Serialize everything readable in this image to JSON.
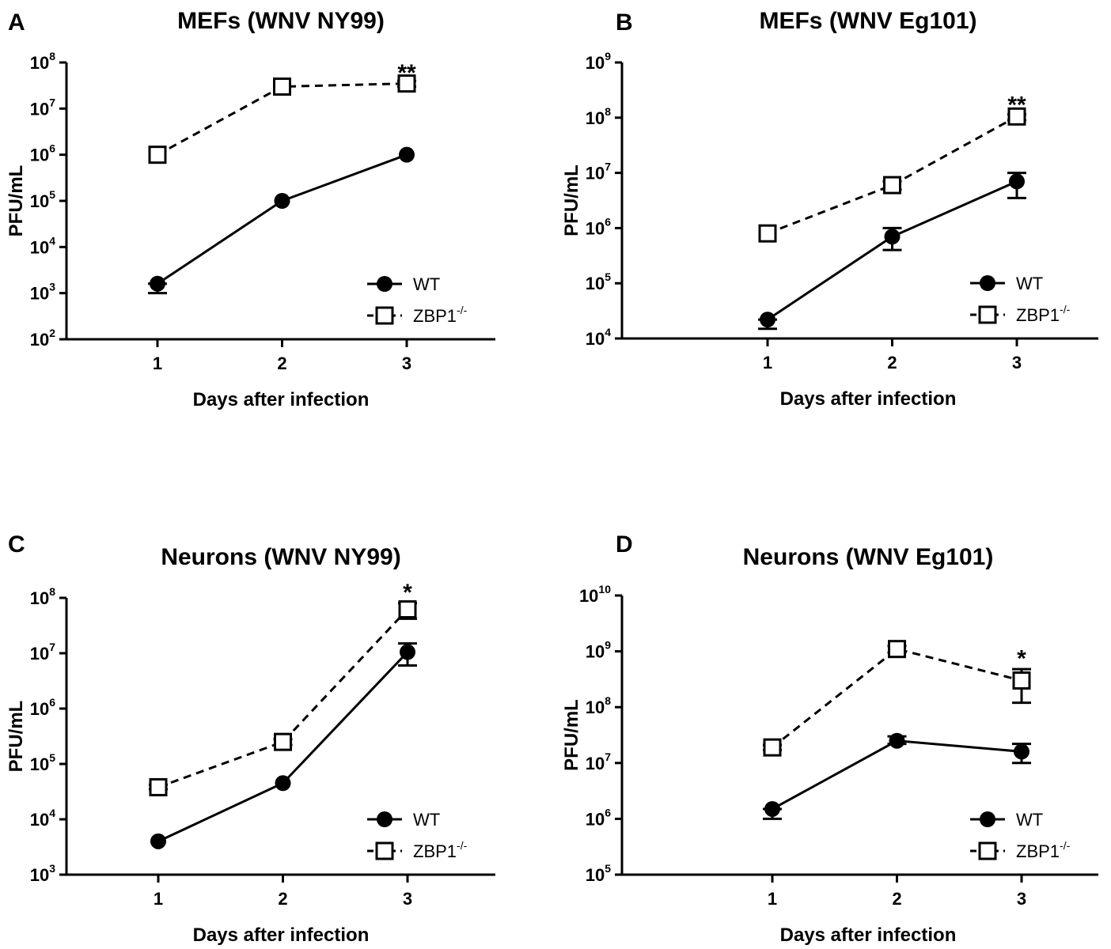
{
  "chart_data": [
    {
      "panel": "A",
      "type": "line",
      "title": "MEFs (WNV NY99)",
      "xlabel": "Days after infection",
      "ylabel": "PFU/mL",
      "yscale": "log",
      "ylim": [
        100,
        100000000
      ],
      "ytick_base": "10",
      "ytick_exponents": [
        "2",
        "3",
        "4",
        "5",
        "6",
        "7",
        "8"
      ],
      "x": [
        1,
        2,
        3
      ],
      "xtick_labels": [
        "1",
        "2",
        "3"
      ],
      "series": [
        {
          "name": "WT",
          "values": [
            1600,
            100000,
            1000000
          ],
          "err_low": [
            1000,
            100000,
            1000000
          ],
          "err_high": [
            1600,
            100000,
            1000000
          ]
        },
        {
          "name": "ZBP1",
          "values": [
            1000000,
            30000000,
            35000000
          ],
          "err_low": [
            1000000,
            30000000,
            30000000
          ],
          "err_high": [
            1000000,
            30000000,
            40000000
          ]
        }
      ],
      "legend_sup": "-/-",
      "annotations": [
        {
          "x": 3,
          "text": "**",
          "y": 60000000
        }
      ]
    },
    {
      "panel": "B",
      "type": "line",
      "title": "MEFs (WNV Eg101)",
      "xlabel": "Days after infection",
      "ylabel": "PFU/mL",
      "yscale": "log",
      "ylim": [
        10000,
        1000000000
      ],
      "ytick_base": "10",
      "ytick_exponents": [
        "4",
        "5",
        "6",
        "7",
        "8",
        "9"
      ],
      "x": [
        1,
        2,
        3
      ],
      "xtick_labels": [
        "1",
        "2",
        "3"
      ],
      "series": [
        {
          "name": "WT",
          "values": [
            22000,
            700000,
            7000000
          ],
          "err_low": [
            15000,
            400000,
            3500000
          ],
          "err_high": [
            22000,
            1000000,
            10000000
          ]
        },
        {
          "name": "ZBP1",
          "values": [
            800000,
            6000000,
            105000000
          ],
          "err_low": [
            800000,
            5000000,
            90000000
          ],
          "err_high": [
            800000,
            7000000,
            115000000
          ]
        }
      ],
      "legend_sup": "-/-",
      "annotations": [
        {
          "x": 3,
          "text": "**",
          "y": 170000000
        }
      ]
    },
    {
      "panel": "C",
      "type": "line",
      "title": "Neurons (WNV NY99)",
      "xlabel": "Days after infection",
      "ylabel": "PFU/mL",
      "yscale": "log",
      "ylim": [
        1000,
        100000000
      ],
      "ytick_base": "10",
      "ytick_exponents": [
        "3",
        "4",
        "5",
        "6",
        "7",
        "8"
      ],
      "x": [
        1,
        2,
        3
      ],
      "xtick_labels": [
        "1",
        "2",
        "3"
      ],
      "series": [
        {
          "name": "WT",
          "values": [
            4000,
            45000,
            10500000
          ],
          "err_low": [
            4000,
            45000,
            6000000
          ],
          "err_high": [
            4000,
            45000,
            15000000
          ]
        },
        {
          "name": "ZBP1",
          "values": [
            38000,
            250000,
            62000000
          ],
          "err_low": [
            35000,
            220000,
            42000000
          ],
          "err_high": [
            42000,
            280000,
            80000000
          ]
        }
      ],
      "legend_sup": "-/-",
      "annotations": [
        {
          "x": 3,
          "text": "*",
          "y": 125000000
        }
      ]
    },
    {
      "panel": "D",
      "type": "line",
      "title": "Neurons (WNV Eg101)",
      "xlabel": "Days after infection",
      "ylabel": "PFU/mL",
      "yscale": "log",
      "ylim": [
        100000,
        10000000000
      ],
      "ytick_base": "10",
      "ytick_exponents": [
        "5",
        "6",
        "7",
        "8",
        "9",
        "10"
      ],
      "x": [
        1,
        2,
        3
      ],
      "xtick_labels": [
        "1",
        "2",
        "3"
      ],
      "series": [
        {
          "name": "WT",
          "values": [
            1500000,
            25000000,
            16000000
          ],
          "err_low": [
            1000000,
            22000000,
            10000000
          ],
          "err_high": [
            1500000,
            30000000,
            22000000
          ]
        },
        {
          "name": "ZBP1",
          "values": [
            19000000,
            1100000000,
            300000000
          ],
          "err_low": [
            17000000,
            950000000,
            120000000
          ],
          "err_high": [
            21000000,
            1250000000,
            480000000
          ]
        }
      ],
      "legend_sup": "-/-",
      "annotations": [
        {
          "x": 3,
          "text": "*",
          "y": 750000000
        }
      ]
    }
  ]
}
